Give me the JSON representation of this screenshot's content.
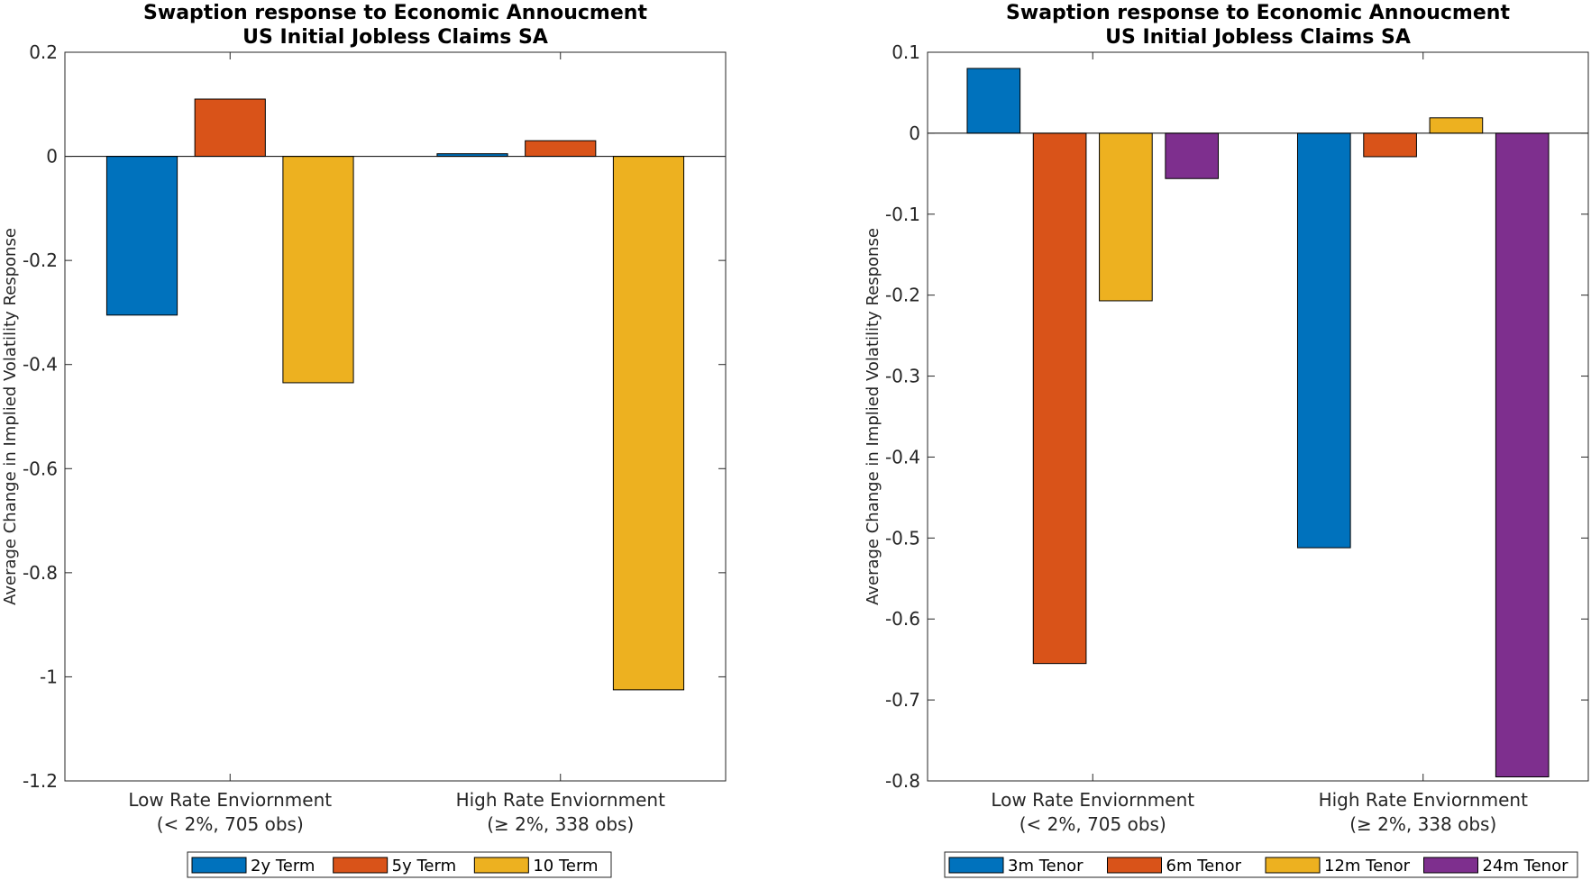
{
  "chart_data": [
    {
      "type": "bar",
      "title": [
        "Swaption response to Economic Annoucment",
        "US Initial Jobless Claims SA"
      ],
      "ylabel": "Average Change in Implied Volatility Response",
      "ylim": [
        -1.2,
        0.2
      ],
      "yticks": [
        0.2,
        0,
        -0.2,
        -0.4,
        -0.6,
        -0.8,
        -1,
        -1.2
      ],
      "ytick_labels": [
        "0.2",
        "0",
        "-0.2",
        "-0.4",
        "-0.6",
        "-0.8",
        "-1",
        "-1.2"
      ],
      "categories": [
        [
          "Low Rate Enviornment",
          "(< 2%, 705 obs)"
        ],
        [
          "High Rate Enviornment",
          "(≥ 2%, 338 obs)"
        ]
      ],
      "series": [
        {
          "name": "2y Term",
          "color": "#0072BD",
          "values": [
            -0.305,
            0.005
          ]
        },
        {
          "name": "5y Term",
          "color": "#D95319",
          "values": [
            0.11,
            0.03
          ]
        },
        {
          "name": "10 Term",
          "color": "#EDB120",
          "values": [
            -0.435,
            -1.025
          ]
        }
      ],
      "legend_position": "bottom-outside",
      "grid": false
    },
    {
      "type": "bar",
      "title": [
        "Swaption response to Economic Annoucment",
        "US Initial Jobless Claims SA"
      ],
      "ylabel": "Average Change in Implied Volatility Response",
      "ylim": [
        -0.8,
        0.1
      ],
      "yticks": [
        0.1,
        0,
        -0.1,
        -0.2,
        -0.3,
        -0.4,
        -0.5,
        -0.6,
        -0.7,
        -0.8
      ],
      "ytick_labels": [
        "0.1",
        "0",
        "-0.1",
        "-0.2",
        "-0.3",
        "-0.4",
        "-0.5",
        "-0.6",
        "-0.7",
        "-0.8"
      ],
      "categories": [
        [
          "Low Rate Enviornment",
          "(< 2%, 705 obs)"
        ],
        [
          "High Rate Enviornment",
          "(≥ 2%, 338 obs)"
        ]
      ],
      "series": [
        {
          "name": "3m Tenor",
          "color": "#0072BD",
          "values": [
            0.08,
            -0.512
          ]
        },
        {
          "name": "6m Tenor",
          "color": "#D95319",
          "values": [
            -0.655,
            -0.029
          ]
        },
        {
          "name": "12m Tenor",
          "color": "#EDB120",
          "values": [
            -0.207,
            0.019
          ]
        },
        {
          "name": "24m Tenor",
          "color": "#7E2F8E",
          "values": [
            -0.056,
            -0.795
          ]
        }
      ],
      "legend_position": "bottom-outside",
      "grid": false
    }
  ]
}
